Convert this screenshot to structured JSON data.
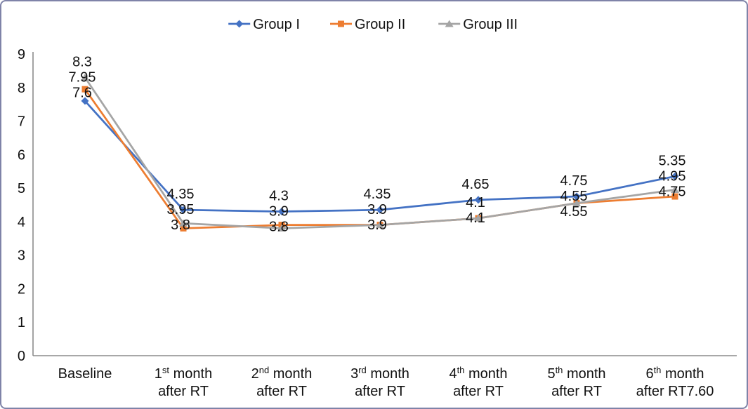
{
  "figure": {
    "background": "#ffffff",
    "border_color": "#7f83a8"
  },
  "chart_data": {
    "type": "line",
    "title": "",
    "grid": false,
    "legend_position": "top",
    "legend": [
      "Group I",
      "Group II",
      "Group III"
    ],
    "ylim": [
      0,
      9
    ],
    "yticks": [
      "0",
      "1",
      "2",
      "3",
      "4",
      "5",
      "6",
      "7",
      "8",
      "9"
    ],
    "axis_color": "#8c8c8c",
    "text_color": "#111111",
    "categories": [
      {
        "text": "Baseline",
        "sup": "",
        "rest": "",
        "line2": ""
      },
      {
        "text": "1",
        "sup": "st",
        "rest": " month",
        "line2": "after RT"
      },
      {
        "text": "2",
        "sup": "nd",
        "rest": " month",
        "line2": "after RT"
      },
      {
        "text": "3",
        "sup": "rd",
        "rest": " month",
        "line2": "after RT"
      },
      {
        "text": "4",
        "sup": "th",
        "rest": " month",
        "line2": "after RT"
      },
      {
        "text": "5",
        "sup": "th",
        "rest": " month",
        "line2": "after RT"
      },
      {
        "text": "6",
        "sup": "th",
        "rest": " month",
        "line2": "after RT7.60"
      }
    ],
    "series": [
      {
        "name": "Group I",
        "color": "#4472C4",
        "marker": "diamond",
        "values": [
          7.6,
          4.35,
          4.3,
          4.35,
          4.65,
          4.75,
          5.35
        ],
        "labels": [
          "7.6",
          "4.35",
          "4.3",
          "4.35",
          "4.65",
          "4.75",
          "5.35"
        ]
      },
      {
        "name": "Group II",
        "color": "#ED7D31",
        "marker": "square",
        "values": [
          7.95,
          3.8,
          3.9,
          3.9,
          4.1,
          4.55,
          4.75
        ],
        "labels": [
          "7.95",
          "3.8",
          "3.9",
          "3.9",
          "4.1",
          "4.55",
          "4.75"
        ]
      },
      {
        "name": "Group III",
        "color": "#A5A5A5",
        "marker": "triangle",
        "values": [
          8.3,
          3.95,
          3.8,
          3.9,
          4.1,
          4.55,
          4.95
        ],
        "labels": [
          "8.3",
          "3.95",
          "3.8",
          "3.9",
          "4.1",
          "4.55",
          "4.95"
        ]
      }
    ]
  }
}
